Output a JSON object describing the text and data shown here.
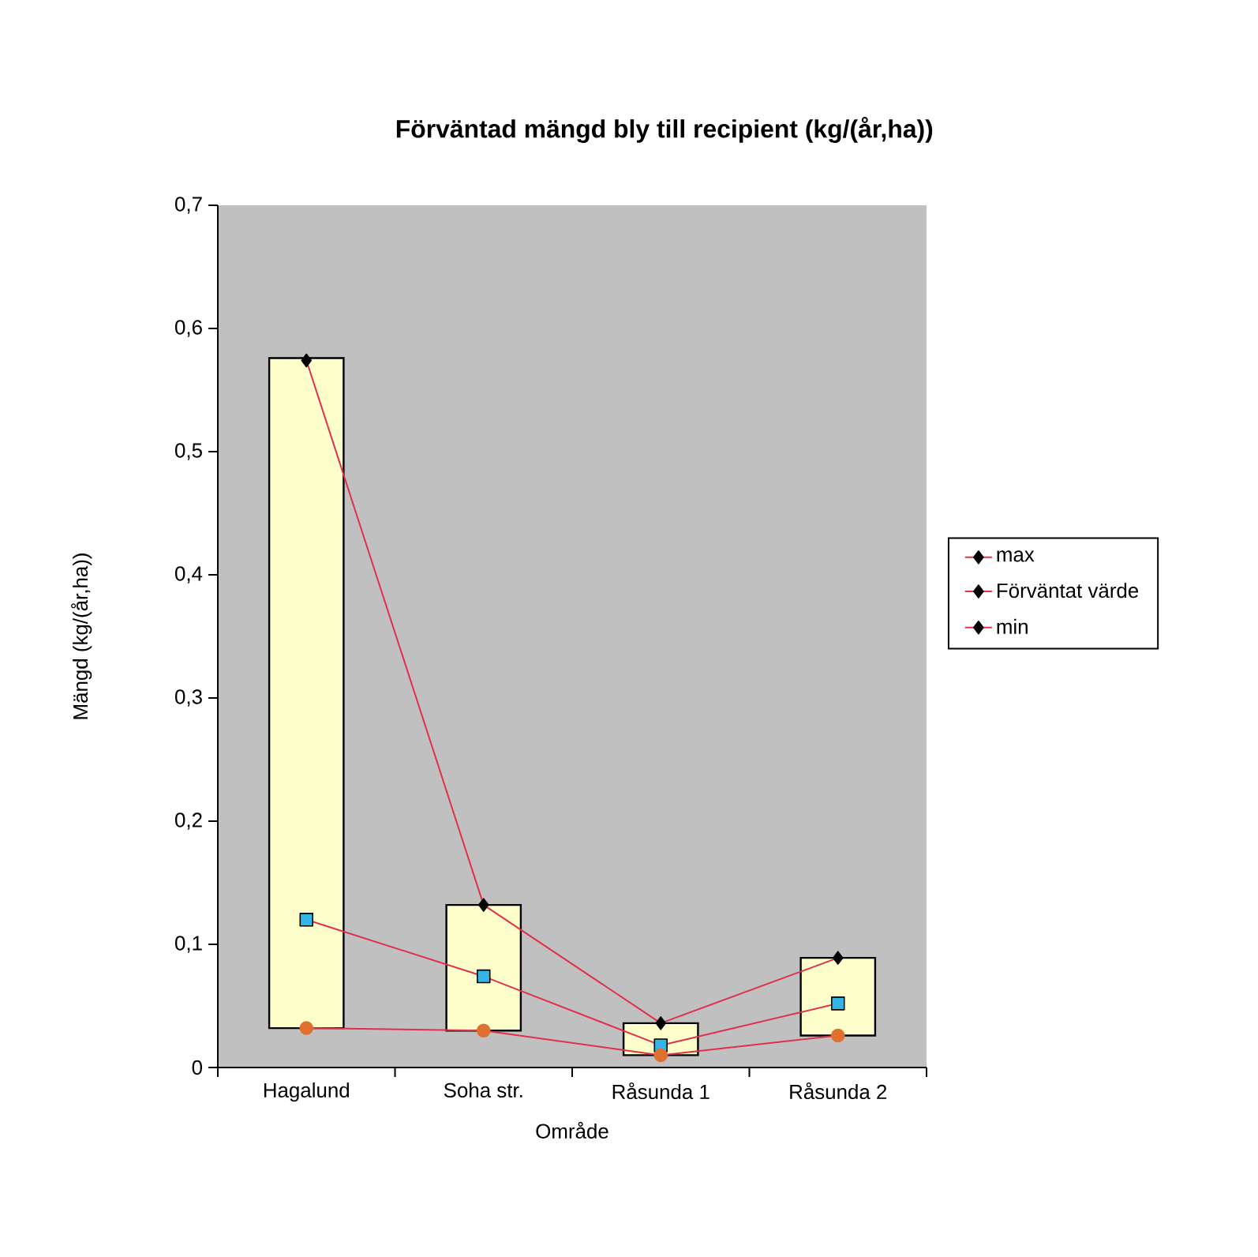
{
  "chart_data": {
    "type": "line",
    "title": "Förväntad mängd bly till recipient (kg/(år,ha))",
    "xlabel": "Område",
    "ylabel": "Mängd (kg/(år,ha))",
    "categories": [
      "Hagalund",
      "Soha str.",
      "Råsunda 1",
      "Råsunda 2"
    ],
    "ylim": [
      0,
      0.7
    ],
    "yticks": [
      0,
      {
        "value": 0.1,
        "label": "0,1"
      },
      {
        "value": 0.2,
        "label": "0,2"
      },
      {
        "value": 0.3,
        "label": "0,3"
      },
      {
        "value": 0.4,
        "label": "0,4"
      },
      {
        "value": 0.5,
        "label": "0,5"
      },
      {
        "value": 0.6,
        "label": "0,6"
      },
      {
        "value": 0.7,
        "label": "0,7"
      }
    ],
    "legend": "right",
    "series": [
      {
        "type": "bar",
        "color": "#ffffcc",
        "base": [
          0.032,
          0.03,
          0.01,
          0.026
        ],
        "values": [
          0.544,
          0.102,
          0.026,
          0.063
        ]
      },
      {
        "name": "max",
        "color": "#e0304a",
        "colors": [
          "#000000",
          "#000000",
          "#000000",
          "#000000"
        ],
        "marker": "diamond",
        "values": [
          0.574,
          0.132,
          0.036,
          0.089
        ]
      },
      {
        "name": "Förväntat värde",
        "color": "#e0304a",
        "colors": [
          "#33b5e5",
          "#33b5e5",
          "#33b5e5",
          "#33b5e5"
        ],
        "marker": "square",
        "values": [
          0.12,
          0.074,
          0.018,
          0.052
        ]
      },
      {
        "name": "min",
        "color": "#e0304a",
        "colors": [
          "#e07030",
          "#e07030",
          "#e07030",
          "#e07030"
        ],
        "marker": "circle",
        "values": [
          0.032,
          0.03,
          0.01,
          0.026
        ]
      }
    ]
  }
}
